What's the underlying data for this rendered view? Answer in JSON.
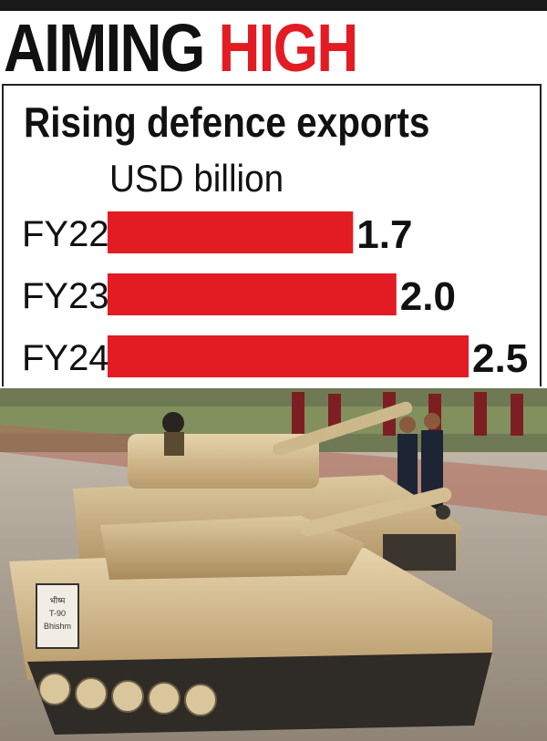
{
  "headline": {
    "part1": "AIMING",
    "part2": "HIGH"
  },
  "colors": {
    "accent": "#e31b23",
    "bar": "#e31b23",
    "text": "#111111"
  },
  "chart_data": {
    "type": "bar",
    "orientation": "horizontal",
    "title": "Rising defence exports",
    "units": "USD billion",
    "categories": [
      "FY22",
      "FY23",
      "FY24"
    ],
    "values": [
      1.7,
      2.0,
      2.5
    ],
    "value_labels": [
      "1.7",
      "2.0",
      "2.5"
    ],
    "xlim": [
      0,
      2.5
    ],
    "grid": false,
    "legend": "none"
  },
  "photo": {
    "subject_icon": "tank-photo",
    "plate_text": "भीष्म T-90 Bhishm"
  }
}
